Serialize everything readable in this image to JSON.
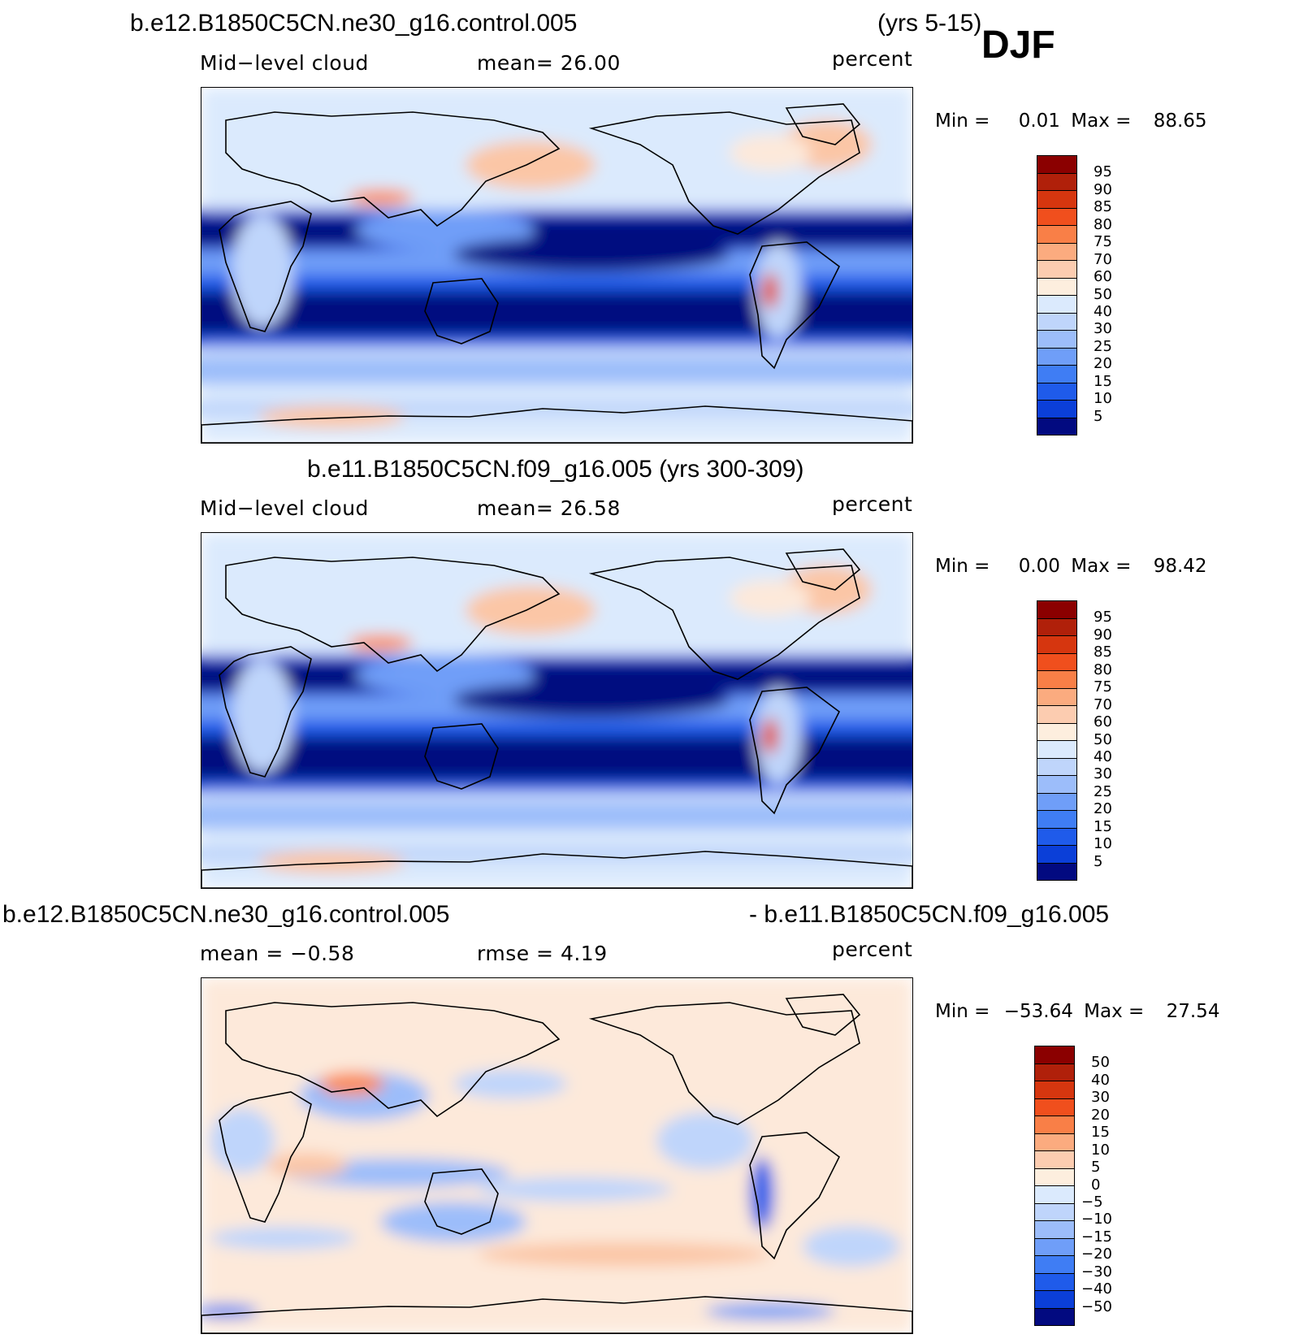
{
  "season": "DJF",
  "colors": {
    "land_outline": "#000000",
    "warm_palette": [
      "#fde9da",
      "#fbc6a6",
      "#f98e60",
      "#f46a36",
      "#e2431a",
      "#c42a0c",
      "#8b0000"
    ],
    "cool_palette": [
      "#dbeafd",
      "#bfd5fb",
      "#9cbdfa",
      "#6f9ef8",
      "#3f7df4",
      "#1f5bea",
      "#0b3fd8",
      "#062ab4",
      "#020a80"
    ]
  },
  "panels": [
    {
      "id": "top",
      "title_left": "b.e12.B1850C5CN.ne30_g16.control.005",
      "title_right": "(yrs 5-15)",
      "sub_left": "Mid−level cloud",
      "sub_center": "mean=   26.00",
      "units": "percent",
      "min_label": "Min =",
      "min_value": "0.01",
      "max_label": "Max =",
      "max_value": "88.65",
      "colorbar_labels": [
        "95",
        "90",
        "85",
        "80",
        "75",
        "70",
        "60",
        "50",
        "40",
        "30",
        "25",
        "20",
        "15",
        "10",
        "5"
      ],
      "colorbar_colors": [
        "#8b0000",
        "#b0200a",
        "#d6360f",
        "#f04f1d",
        "#f97f47",
        "#fbab7f",
        "#fcccb0",
        "#fdeede",
        "#dbeafd",
        "#bfd5fb",
        "#9cbdfa",
        "#6f9ef8",
        "#3f7df4",
        "#1f5bea",
        "#0b3fd8",
        "#020a80"
      ]
    },
    {
      "id": "middle",
      "title": "b.e11.B1850C5CN.f09_g16.005 (yrs 300-309)",
      "sub_left": "Mid−level cloud",
      "sub_center": "mean=   26.58",
      "units": "percent",
      "min_label": "Min =",
      "min_value": "0.00",
      "max_label": "Max =",
      "max_value": "98.42",
      "colorbar_labels": [
        "95",
        "90",
        "85",
        "80",
        "75",
        "70",
        "60",
        "50",
        "40",
        "30",
        "25",
        "20",
        "15",
        "10",
        "5"
      ],
      "colorbar_colors": [
        "#8b0000",
        "#b0200a",
        "#d6360f",
        "#f04f1d",
        "#f97f47",
        "#fbab7f",
        "#fcccb0",
        "#fdeede",
        "#dbeafd",
        "#bfd5fb",
        "#9cbdfa",
        "#6f9ef8",
        "#3f7df4",
        "#1f5bea",
        "#0b3fd8",
        "#020a80"
      ]
    },
    {
      "id": "bottom",
      "title_left": "b.e12.B1850C5CN.ne30_g16.control.005",
      "title_right": "- b.e11.B1850C5CN.f09_g16.005",
      "sub_left": "mean =   −0.58",
      "sub_center": "rmse =     4.19",
      "units": "percent",
      "min_label": "Min =",
      "min_value": "−53.64",
      "max_label": "Max =",
      "max_value": "27.54",
      "colorbar_labels": [
        "50",
        "40",
        "30",
        "20",
        "15",
        "10",
        "5",
        "0",
        "−5",
        "−10",
        "−15",
        "−20",
        "−30",
        "−40",
        "−50"
      ],
      "colorbar_colors": [
        "#8b0000",
        "#b0200a",
        "#d6360f",
        "#f04f1d",
        "#f97f47",
        "#fbab7f",
        "#fcccb0",
        "#fdeede",
        "#dbeafd",
        "#bfd5fb",
        "#9cbdfa",
        "#6f9ef8",
        "#3f7df4",
        "#1f5bea",
        "#0b3fd8",
        "#020a80"
      ]
    }
  ]
}
